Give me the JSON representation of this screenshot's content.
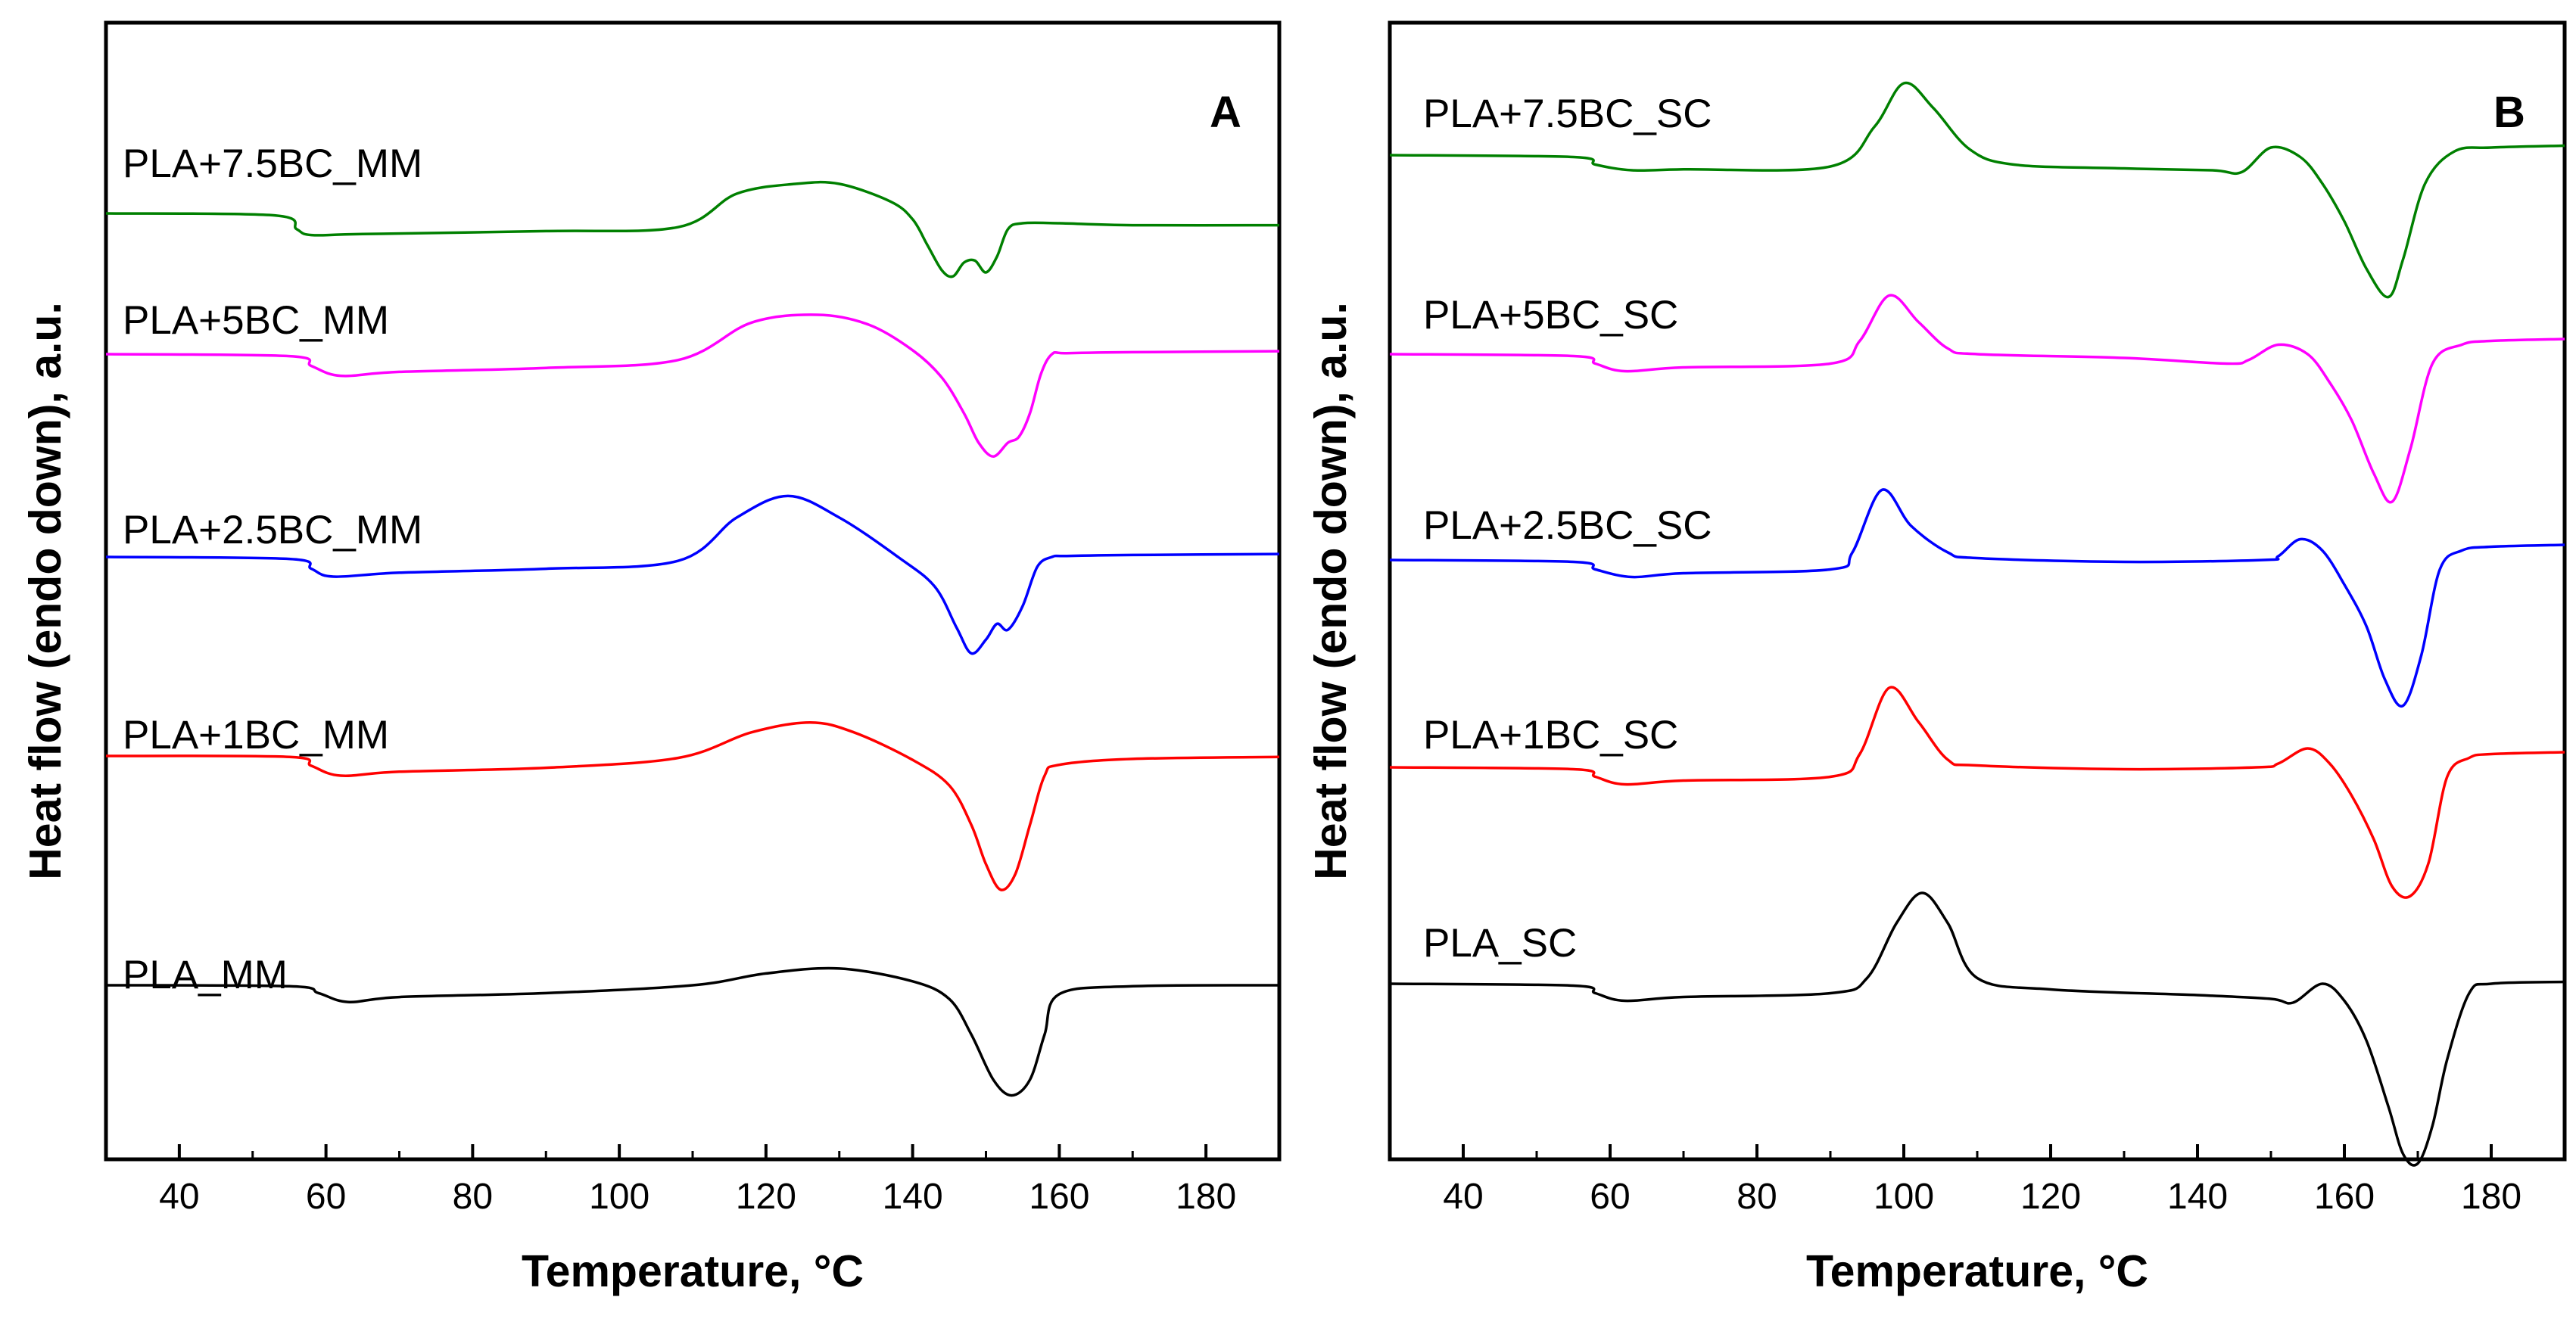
{
  "chart_data": [
    {
      "type": "line",
      "panel_label": "A",
      "xlabel": "Temperature, °C",
      "ylabel": "Heat flow (endo down), a.u.",
      "xlim": [
        30,
        190
      ],
      "xticks": [
        40,
        60,
        80,
        100,
        120,
        140,
        160,
        180
      ],
      "y_axis_ticks": "none",
      "grid": false,
      "series": [
        {
          "name": "PLA_MM",
          "color": "#000000",
          "x": [
            30,
            55,
            59,
            63,
            70,
            90,
            110,
            120,
            130,
            140,
            145,
            148,
            151,
            153.5,
            156,
            158,
            160,
            170,
            190
          ],
          "y": [
            1.0,
            0.95,
            0.6,
            0.15,
            0.4,
            0.6,
            1.0,
            1.6,
            1.85,
            1.2,
            0.3,
            -1.5,
            -3.8,
            -4.6,
            -3.8,
            -1.5,
            0.55,
            0.95,
            1.0
          ]
        },
        {
          "name": "PLA+1BC_MM",
          "color": "#ff0000",
          "x": [
            30,
            55,
            58,
            62,
            70,
            90,
            108,
            118,
            126,
            132,
            140,
            145,
            148,
            150,
            152,
            154,
            156,
            158,
            160,
            170,
            190
          ],
          "y": [
            1.0,
            0.95,
            0.5,
            0.0,
            0.2,
            0.4,
            0.9,
            2.2,
            2.7,
            2.2,
            0.8,
            -0.5,
            -2.5,
            -4.5,
            -5.8,
            -5.0,
            -2.5,
            0.0,
            0.55,
            0.85,
            0.95
          ]
        },
        {
          "name": "PLA+2.5BC_MM",
          "color": "#0000ff",
          "x": [
            30,
            55,
            58,
            61,
            70,
            90,
            108,
            116,
            123,
            130,
            138,
            143,
            146,
            148,
            150,
            151.5,
            153,
            155,
            157,
            159,
            161,
            170,
            190
          ],
          "y": [
            0.0,
            -0.1,
            -0.6,
            -1.0,
            -0.8,
            -0.6,
            -0.2,
            2.0,
            3.1,
            2.0,
            0.0,
            -1.5,
            -3.6,
            -4.9,
            -4.2,
            -3.4,
            -3.7,
            -2.5,
            -0.5,
            0.0,
            0.05,
            0.1,
            0.15
          ]
        },
        {
          "name": "PLA+5BC_MM",
          "color": "#ff00ff",
          "x": [
            30,
            55,
            58,
            62,
            70,
            90,
            108,
            118,
            127,
            134,
            140,
            144,
            147,
            149,
            151,
            153,
            154.5,
            156,
            157.5,
            159,
            161,
            170,
            190
          ],
          "y": [
            0.0,
            -0.1,
            -0.6,
            -1.1,
            -0.9,
            -0.7,
            -0.3,
            1.6,
            2.0,
            1.5,
            0.2,
            -1.2,
            -3.0,
            -4.5,
            -5.2,
            -4.5,
            -4.2,
            -3.0,
            -1.0,
            0.0,
            0.05,
            0.1,
            0.15
          ]
        },
        {
          "name": "PLA+7.5BC_MM",
          "color": "#008000",
          "x": [
            30,
            53,
            56,
            58,
            65,
            90,
            108,
            116,
            124,
            130,
            137,
            140,
            142,
            144,
            145.5,
            147,
            148.5,
            150,
            151.5,
            153,
            155,
            160,
            170,
            190
          ],
          "y": [
            0.0,
            -0.1,
            -0.8,
            -1.1,
            -1.05,
            -0.9,
            -0.7,
            1.0,
            1.5,
            1.5,
            0.6,
            -0.3,
            -1.6,
            -2.9,
            -3.2,
            -2.5,
            -2.4,
            -3.0,
            -2.2,
            -0.8,
            -0.5,
            -0.5,
            -0.6,
            -0.6
          ]
        }
      ]
    },
    {
      "type": "line",
      "panel_label": "B",
      "xlabel": "Temperature, °C",
      "ylabel": "Heat flow (endo down), a.u.",
      "xlim": [
        30,
        190
      ],
      "xticks": [
        40,
        60,
        80,
        100,
        120,
        140,
        160,
        180
      ],
      "y_axis_ticks": "none",
      "grid": false,
      "series": [
        {
          "name": "PLA_SC",
          "color": "#000000",
          "x": [
            30,
            55,
            58,
            62,
            70,
            90,
            95,
            99,
            102.5,
            106,
            110,
            120,
            140,
            150,
            153,
            157,
            160,
            163,
            166,
            168,
            170,
            172,
            174,
            177,
            180,
            190
          ],
          "y": [
            0.0,
            -0.1,
            -0.5,
            -0.9,
            -0.7,
            -0.5,
            0.3,
            3.2,
            4.8,
            3.2,
            0.3,
            -0.3,
            -0.6,
            -0.8,
            -1.0,
            0.0,
            -0.9,
            -3.0,
            -6.5,
            -9.0,
            -9.5,
            -7.5,
            -4.0,
            -0.5,
            0.0,
            0.1
          ]
        },
        {
          "name": "PLA+1BC_SC",
          "color": "#ff0000",
          "x": [
            30,
            55,
            58,
            62,
            70,
            90,
            94,
            98,
            102,
            106,
            110,
            130,
            148,
            151,
            155,
            158,
            161,
            164,
            166.5,
            169,
            171.5,
            174,
            177,
            180,
            190
          ],
          "y": [
            0.0,
            -0.1,
            -0.5,
            -0.9,
            -0.7,
            -0.5,
            0.7,
            4.2,
            2.4,
            0.4,
            0.1,
            -0.1,
            0.0,
            0.2,
            1.0,
            0.2,
            -1.5,
            -3.8,
            -6.3,
            -6.8,
            -5.0,
            -0.5,
            0.5,
            0.7,
            0.8
          ]
        },
        {
          "name": "PLA+2.5BC_SC",
          "color": "#0000ff",
          "x": [
            30,
            55,
            58,
            63,
            70,
            90,
            93,
            97,
            101,
            106,
            110,
            130,
            149,
            151,
            154,
            157,
            160,
            163,
            165.5,
            168,
            170.5,
            173,
            176,
            180,
            190
          ],
          "y": [
            0.0,
            -0.1,
            -0.5,
            -0.9,
            -0.7,
            -0.5,
            0.4,
            3.7,
            1.8,
            0.4,
            0.1,
            -0.1,
            0.0,
            0.2,
            1.1,
            0.5,
            -1.3,
            -3.5,
            -6.3,
            -7.7,
            -5.0,
            -0.5,
            0.5,
            0.7,
            0.8
          ]
        },
        {
          "name": "PLA+5BC_SC",
          "color": "#ff00ff",
          "x": [
            30,
            55,
            58,
            62,
            70,
            90,
            94,
            98,
            102,
            106,
            110,
            130,
            144,
            147,
            151,
            155,
            158,
            161,
            164,
            166.5,
            169,
            172,
            176,
            180,
            190
          ],
          "y": [
            0.0,
            -0.1,
            -0.5,
            -0.9,
            -0.7,
            -0.5,
            0.7,
            3.1,
            1.7,
            0.3,
            0.0,
            -0.2,
            -0.5,
            -0.3,
            0.5,
            0.0,
            -1.5,
            -3.5,
            -6.3,
            -7.8,
            -5.0,
            -0.5,
            0.5,
            0.7,
            0.8
          ]
        },
        {
          "name": "PLA+7.5BC_SC",
          "color": "#008000",
          "x": [
            30,
            55,
            58,
            63,
            70,
            90,
            96,
            100,
            104,
            109,
            115,
            130,
            142,
            146,
            150,
            154,
            157,
            160,
            163,
            166,
            168,
            171,
            175,
            180,
            190
          ],
          "y": [
            0.0,
            -0.1,
            -0.5,
            -0.8,
            -0.75,
            -0.6,
            1.5,
            3.8,
            2.5,
            0.3,
            -0.5,
            -0.7,
            -0.8,
            -0.9,
            0.4,
            -0.1,
            -1.5,
            -3.5,
            -6.0,
            -7.5,
            -5.5,
            -1.5,
            0.2,
            0.4,
            0.5
          ]
        }
      ]
    }
  ],
  "series_labels": {
    "A": [
      "PLA+7.5BC_MM",
      "PLA+5BC_MM",
      "PLA+2.5BC_MM",
      "PLA+1BC_MM",
      "PLA_MM"
    ],
    "B": [
      "PLA+7.5BC_SC",
      "PLA+5BC_SC",
      "PLA+2.5BC_SC",
      "PLA+1BC_SC",
      "PLA_SC"
    ]
  }
}
